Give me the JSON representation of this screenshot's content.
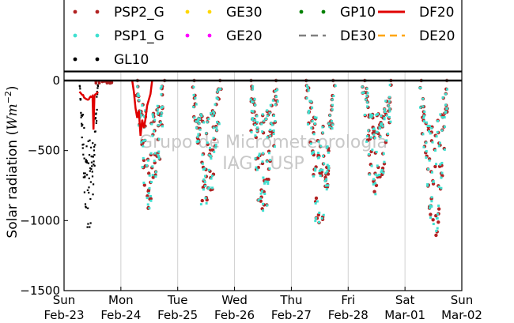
{
  "chart_data": {
    "type": "scatter",
    "title": "",
    "xlabel": "",
    "ylabel": "Solar radiation (Wm^-2)",
    "ylabel_main": "Solar radiation (",
    "ylabel_unit": "Wm",
    "ylabel_exp": "−2",
    "ylabel_close": ")",
    "ylim": [
      -1500,
      0
    ],
    "yticks": [
      0,
      -500,
      -1000,
      -1500
    ],
    "ytick_labels": [
      "0",
      "−500",
      "−1000",
      "−1500"
    ],
    "xlim": [
      0,
      7
    ],
    "xticks": [
      {
        "day": "Sun",
        "date": "Feb-23"
      },
      {
        "day": "Mon",
        "date": "Feb-24"
      },
      {
        "day": "Tue",
        "date": "Feb-25"
      },
      {
        "day": "Wed",
        "date": "Feb-26"
      },
      {
        "day": "Thu",
        "date": "Feb-27"
      },
      {
        "day": "Fri",
        "date": "Feb-28"
      },
      {
        "day": "Sat",
        "date": "Mar-01"
      },
      {
        "day": "Sun",
        "date": "Mar-02"
      }
    ],
    "grid": "vertical",
    "legend_placement": "top",
    "watermark": [
      "Grupo de Micrometeorologia",
      "IAG - USP"
    ],
    "legend": [
      {
        "name": "PSP2_G",
        "color": "#b22222",
        "style": "dots"
      },
      {
        "name": "GE30",
        "color": "#ffd700",
        "style": "dots"
      },
      {
        "name": "GP10",
        "color": "#008000",
        "style": "dots"
      },
      {
        "name": "DF20",
        "color": "#e00000",
        "style": "line"
      },
      {
        "name": "PSP1_G",
        "color": "#40e0d0",
        "style": "dots"
      },
      {
        "name": "GE20",
        "color": "#ff00ff",
        "style": "dots"
      },
      {
        "name": "DE30",
        "color": "#808080",
        "style": "dashed"
      },
      {
        "name": "DE20",
        "color": "#ffa500",
        "style": "dashed"
      },
      {
        "name": "GL10",
        "color": "#000000",
        "style": "dots"
      }
    ],
    "daily_peak": [
      {
        "day": "Feb-23",
        "GL10": -1120,
        "PSP2_G": -20,
        "DF20": -350
      },
      {
        "day": "Feb-24",
        "PSP2_G": -930,
        "PSP1_G": -930,
        "DF20": -410
      },
      {
        "day": "Feb-25",
        "PSP2_G": -950,
        "PSP1_G": -950
      },
      {
        "day": "Feb-26",
        "PSP2_G": -960,
        "PSP1_G": -960
      },
      {
        "day": "Feb-27",
        "PSP2_G": -1050,
        "PSP1_G": -1050
      },
      {
        "day": "Feb-28",
        "PSP2_G": -870,
        "PSP1_G": -870
      },
      {
        "day": "Mar-01",
        "PSP2_G": -1120,
        "PSP1_G": -1120
      }
    ]
  }
}
